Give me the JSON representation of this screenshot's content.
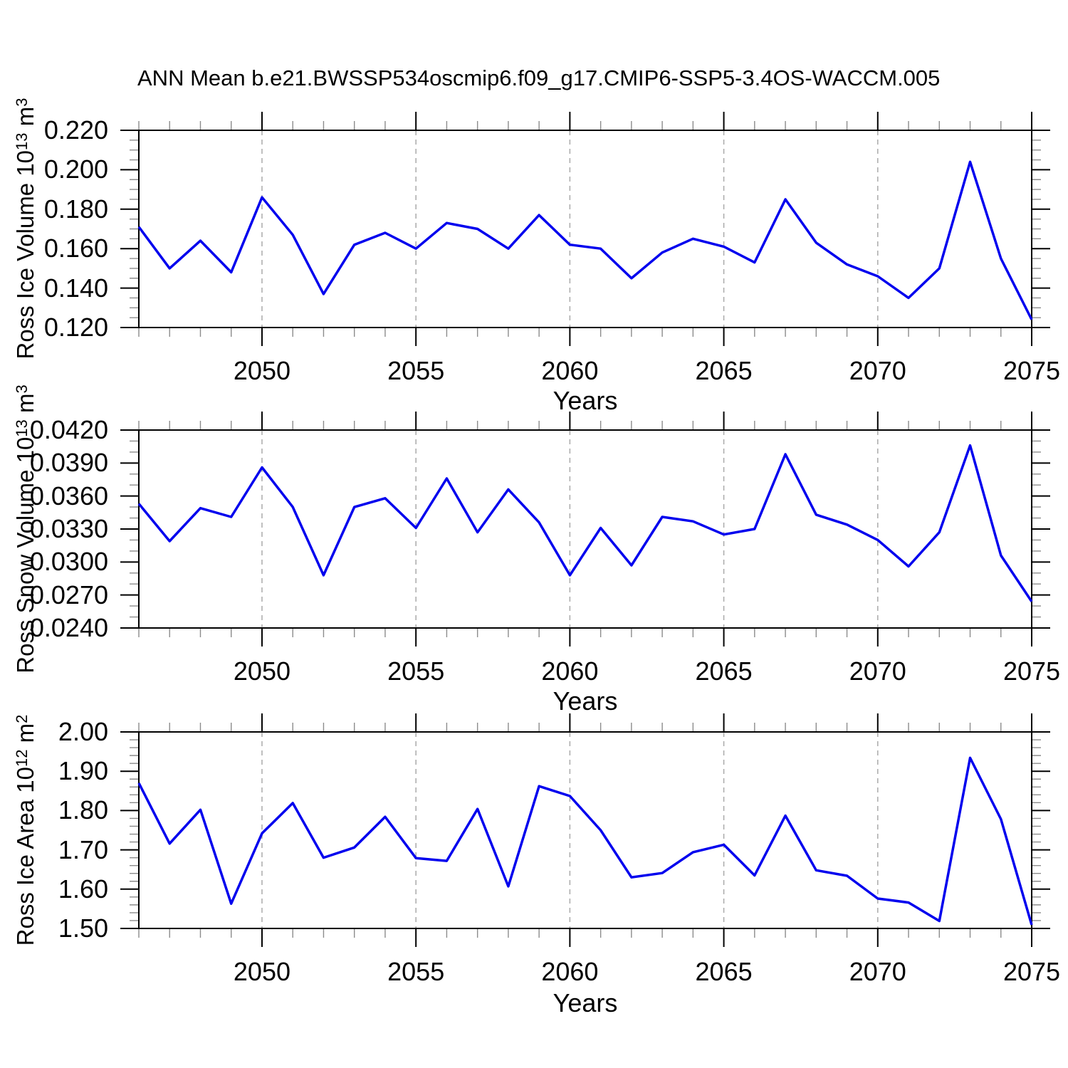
{
  "title": "ANN Mean b.e21.BWSSP534oscmip6.f09_g17.CMIP6-SSP5-3.4OS-WACCM.005",
  "x_axis": {
    "label": "Years",
    "xlim": [
      2046,
      2075
    ],
    "major_ticks": [
      2050,
      2055,
      2060,
      2065,
      2070,
      2075
    ],
    "major_tick_labels": [
      "2050",
      "2055",
      "2060",
      "2065",
      "2070",
      "2075"
    ],
    "minor_step": 1,
    "grid_vertical_dashed": true
  },
  "colors": {
    "line": "#0000EE",
    "grid": "#AAAAAA",
    "axis": "#000000",
    "minor_tick": "#8C8C8C",
    "text": "#000000",
    "background": "#FFFFFF"
  },
  "chart_data": [
    {
      "type": "line",
      "ylabel": {
        "base": "Ross Ice Volume 10",
        "exp": "13",
        "unit": " m",
        "unit_exp": "3"
      },
      "xlabel": "Years",
      "x": [
        2046,
        2047,
        2048,
        2049,
        2050,
        2051,
        2052,
        2053,
        2054,
        2055,
        2056,
        2057,
        2058,
        2059,
        2060,
        2061,
        2062,
        2063,
        2064,
        2065,
        2066,
        2067,
        2068,
        2069,
        2070,
        2071,
        2072,
        2073,
        2074,
        2075
      ],
      "values": [
        0.171,
        0.15,
        0.164,
        0.148,
        0.186,
        0.167,
        0.137,
        0.162,
        0.168,
        0.16,
        0.173,
        0.17,
        0.16,
        0.177,
        0.162,
        0.16,
        0.145,
        0.158,
        0.165,
        0.161,
        0.153,
        0.185,
        0.163,
        0.152,
        0.146,
        0.135,
        0.15,
        0.204,
        0.155,
        0.124
      ],
      "ylim": [
        0.12,
        0.22
      ],
      "ytick_values": [
        0.12,
        0.14,
        0.16,
        0.18,
        0.2,
        0.22
      ],
      "ytick_labels": [
        "0.120",
        "0.140",
        "0.160",
        "0.180",
        "0.200",
        "0.220"
      ],
      "yminor_step": 0.005,
      "grid": "vertical-dashed",
      "legend": "none"
    },
    {
      "type": "line",
      "ylabel": {
        "base": "Ross Snow Volume 10",
        "exp": "13",
        "unit": " m",
        "unit_exp": "3"
      },
      "xlabel": "Years",
      "x": [
        2046,
        2047,
        2048,
        2049,
        2050,
        2051,
        2052,
        2053,
        2054,
        2055,
        2056,
        2057,
        2058,
        2059,
        2060,
        2061,
        2062,
        2063,
        2064,
        2065,
        2066,
        2067,
        2068,
        2069,
        2070,
        2071,
        2072,
        2073,
        2074,
        2075
      ],
      "values": [
        0.0353,
        0.0319,
        0.0349,
        0.0341,
        0.0386,
        0.035,
        0.0288,
        0.035,
        0.0358,
        0.0331,
        0.0376,
        0.0327,
        0.0366,
        0.0336,
        0.0288,
        0.0331,
        0.0297,
        0.0341,
        0.0337,
        0.0325,
        0.033,
        0.0398,
        0.0343,
        0.0334,
        0.032,
        0.0296,
        0.0327,
        0.0406,
        0.0306,
        0.0264
      ],
      "ylim": [
        0.024,
        0.042
      ],
      "ytick_values": [
        0.024,
        0.027,
        0.03,
        0.033,
        0.036,
        0.039,
        0.042
      ],
      "ytick_labels": [
        "0.0240",
        "0.0270",
        "0.0300",
        "0.0330",
        "0.0360",
        "0.0390",
        "0.0420"
      ],
      "yminor_step": 0.001,
      "grid": "vertical-dashed",
      "legend": "none"
    },
    {
      "type": "line",
      "ylabel": {
        "base": "Ross Ice Area 10",
        "exp": "12",
        "unit": " m",
        "unit_exp": "2"
      },
      "xlabel": "Years",
      "x": [
        2046,
        2047,
        2048,
        2049,
        2050,
        2051,
        2052,
        2053,
        2054,
        2055,
        2056,
        2057,
        2058,
        2059,
        2060,
        2061,
        2062,
        2063,
        2064,
        2065,
        2066,
        2067,
        2068,
        2069,
        2070,
        2071,
        2072,
        2073,
        2074,
        2075
      ],
      "values": [
        1.87,
        1.716,
        1.802,
        1.563,
        1.742,
        1.819,
        1.68,
        1.706,
        1.784,
        1.679,
        1.672,
        1.804,
        1.607,
        1.862,
        1.837,
        1.75,
        1.63,
        1.641,
        1.694,
        1.713,
        1.635,
        1.787,
        1.648,
        1.634,
        1.576,
        1.566,
        1.519,
        1.934,
        1.778,
        1.509
      ],
      "ylim": [
        1.5,
        2.0
      ],
      "ytick_values": [
        1.5,
        1.6,
        1.7,
        1.8,
        1.9,
        2.0
      ],
      "ytick_labels": [
        "1.50",
        "1.60",
        "1.70",
        "1.80",
        "1.90",
        "2.00"
      ],
      "yminor_step": 0.02,
      "grid": "vertical-dashed",
      "legend": "none"
    }
  ]
}
